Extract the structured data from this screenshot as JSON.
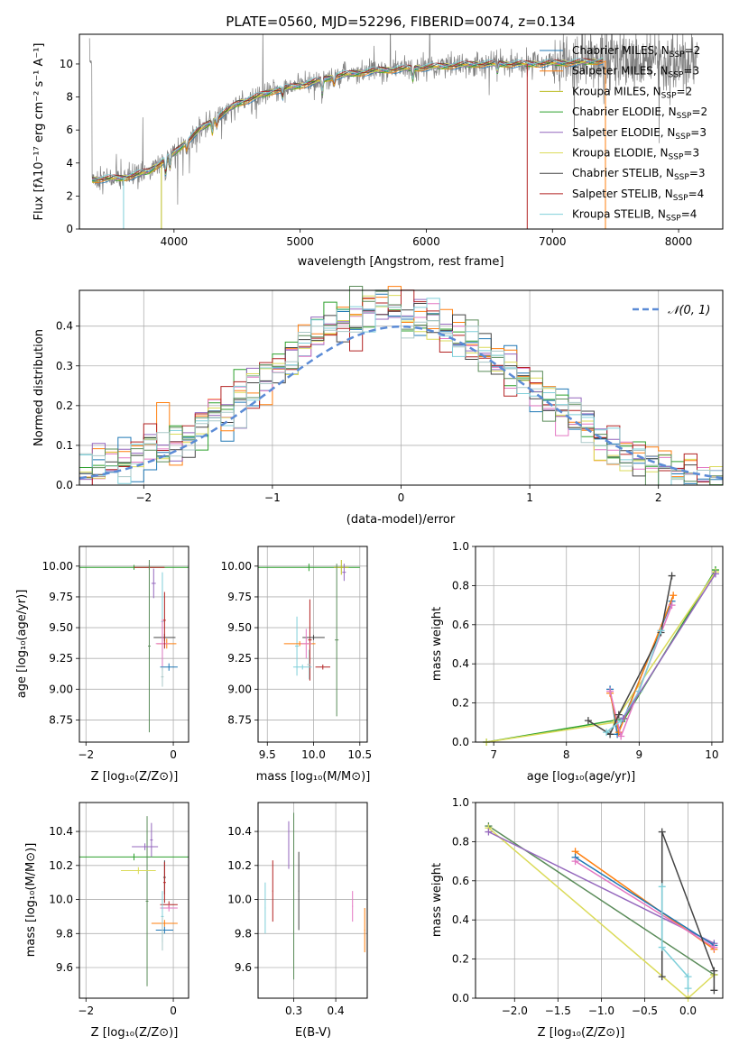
{
  "chart_data": [
    {
      "id": "spectrum",
      "type": "line",
      "title": "PLATE=0560, MJD=52296, FIBERID=0074, z=0.134",
      "xlabel": "wavelength [Angstrom, rest frame]",
      "ylabel": "Flux [fλ10⁻¹⁷ erg cm⁻² s⁻¹ A⁻¹]",
      "xlim": [
        3250,
        8350
      ],
      "ylim": [
        0,
        11.8
      ],
      "xticks": [
        "4000",
        "5000",
        "6000",
        "7000",
        "8000"
      ],
      "yticks": [
        "0",
        "2",
        "4",
        "6",
        "8",
        "10"
      ],
      "grid": false,
      "legend_position": "right",
      "legend": [
        {
          "label": "Chabrier MILES, N",
          "sub": "SSP",
          "eq": "=2",
          "color": "#1f77b4"
        },
        {
          "label": "Salpeter MILES, N",
          "sub": "SSP",
          "eq": "=3",
          "color": "#ff7f0e"
        },
        {
          "label": "Kroupa MILES, N",
          "sub": "SSP",
          "eq": "=2",
          "color": "#bcbd22"
        },
        {
          "label": "Chabrier ELODIE, N",
          "sub": "SSP",
          "eq": "=2",
          "color": "#2ca02c"
        },
        {
          "label": "Salpeter ELODIE, N",
          "sub": "SSP",
          "eq": "=3",
          "color": "#9467bd"
        },
        {
          "label": "Kroupa ELODIE, N",
          "sub": "SSP",
          "eq": "=3",
          "color": "#dbdb5a"
        },
        {
          "label": "Chabrier STELIB, N",
          "sub": "SSP",
          "eq": "=3",
          "color": "#444444"
        },
        {
          "label": "Salpeter STELIB, N",
          "sub": "SSP",
          "eq": "=4",
          "color": "#b22222"
        },
        {
          "label": "Kroupa STELIB, N",
          "sub": "SSP",
          "eq": "=4",
          "color": "#7fcfd9"
        }
      ],
      "model_continuum": {
        "x": [
          3350,
          3600,
          3800,
          4000,
          4200,
          4500,
          4800,
          5000,
          5300,
          5600,
          6000,
          6400,
          6800,
          7200,
          7400
        ],
        "y": [
          3.0,
          3.1,
          3.5,
          4.6,
          6.0,
          7.6,
          8.4,
          8.7,
          9.3,
          9.6,
          9.8,
          10.0,
          10.0,
          10.1,
          10.2
        ]
      }
    },
    {
      "id": "residuals",
      "type": "histogram",
      "xlabel": "(data-model)/error",
      "ylabel": "Normed distribution",
      "xlim": [
        -2.5,
        2.5
      ],
      "ylim": [
        0,
        0.49
      ],
      "xticks": [
        "−2",
        "−1",
        "0",
        "1",
        "2"
      ],
      "yticks": [
        "0.0",
        "0.1",
        "0.2",
        "0.3",
        "0.4"
      ],
      "grid": true,
      "legend_position": "top-right",
      "legend_label": "𝒩(0, 1)",
      "bin_width": 0.1,
      "bin_start": -2.5,
      "series_colors": [
        "#1f77b4",
        "#ff7f0e",
        "#2ca02c",
        "#9467bd",
        "#e377c2",
        "#dbdb5a",
        "#444444",
        "#b22222",
        "#7fcfd9",
        "#5b8c5a",
        "#aac8c8"
      ]
    },
    {
      "id": "age-vs-Z",
      "type": "errorbar",
      "xlabel": "Z [log₁₀(Z/Z⊙)]",
      "ylabel": "age  [log₁₀(age/yr)]",
      "xlim": [
        -2.15,
        0.35
      ],
      "ylim": [
        8.57,
        10.16
      ],
      "xticks": [
        "−2",
        "0"
      ],
      "yticks": [
        "8.75",
        "9.00",
        "9.25",
        "9.50",
        "9.75",
        "10.00"
      ],
      "points": [
        {
          "x": -0.9,
          "y": 9.99,
          "xerr": 1.25,
          "yerr": 0.02,
          "color": "#2ca02c"
        },
        {
          "x": -0.55,
          "y": 9.99,
          "xerr": 0.35,
          "yerr": 0.02,
          "color": "#b22222"
        },
        {
          "x": -0.45,
          "y": 9.86,
          "xerr": 0.05,
          "yerr": 0.12,
          "color": "#9467bd"
        },
        {
          "x": -0.55,
          "y": 9.35,
          "xerr": 0.03,
          "yerr": 0.7,
          "color": "#5b8c5a"
        },
        {
          "x": -0.25,
          "y": 9.55,
          "xerr": 0.03,
          "yerr": 0.4,
          "color": "#7fcfd9"
        },
        {
          "x": -0.2,
          "y": 9.42,
          "xerr": 0.25,
          "yerr": 0.03,
          "color": "#444444"
        },
        {
          "x": -0.15,
          "y": 9.37,
          "xerr": 0.22,
          "yerr": 0.04,
          "color": "#ff7f0e"
        },
        {
          "x": -0.25,
          "y": 9.37,
          "xerr": 0.15,
          "yerr": 0.2,
          "color": "#e377c2"
        },
        {
          "x": -0.2,
          "y": 9.56,
          "xerr": 0.03,
          "yerr": 0.23,
          "color": "#b22222"
        },
        {
          "x": -0.1,
          "y": 9.18,
          "xerr": 0.2,
          "yerr": 0.03,
          "color": "#1f77b4"
        },
        {
          "x": -0.25,
          "y": 9.1,
          "xerr": 0.03,
          "yerr": 0.08,
          "color": "#aac8c8"
        }
      ]
    },
    {
      "id": "age-vs-mass",
      "type": "errorbar",
      "xlabel": "mass [log₁₀(M/M⊙)]",
      "ylabel": "",
      "xlim": [
        9.4,
        10.58
      ],
      "ylim": [
        8.57,
        10.16
      ],
      "xticks": [
        "9.5",
        "10.0",
        "10.5"
      ],
      "yticks": [
        "8.75",
        "9.00",
        "9.25",
        "9.50",
        "9.75",
        "10.00"
      ],
      "points": [
        {
          "x": 9.95,
          "y": 9.99,
          "xerr": 0.55,
          "yerr": 0.03,
          "color": "#2ca02c"
        },
        {
          "x": 10.3,
          "y": 9.99,
          "xerr": 0.08,
          "yerr": 0.06,
          "color": "#bcbd22"
        },
        {
          "x": 10.33,
          "y": 9.95,
          "xerr": 0.02,
          "yerr": 0.07,
          "color": "#9467bd"
        },
        {
          "x": 10.25,
          "y": 9.4,
          "xerr": 0.02,
          "yerr": 0.62,
          "color": "#5b8c5a"
        },
        {
          "x": 9.82,
          "y": 9.35,
          "xerr": 0.02,
          "yerr": 0.24,
          "color": "#7fcfd9"
        },
        {
          "x": 9.96,
          "y": 9.4,
          "xerr": 0.02,
          "yerr": 0.33,
          "color": "#b22222"
        },
        {
          "x": 10.0,
          "y": 9.42,
          "xerr": 0.12,
          "yerr": 0.02,
          "color": "#444444"
        },
        {
          "x": 9.85,
          "y": 9.37,
          "xerr": 0.17,
          "yerr": 0.02,
          "color": "#ff7f0e"
        },
        {
          "x": 9.92,
          "y": 9.37,
          "xerr": 0.06,
          "yerr": 0.12,
          "color": "#e377c2"
        },
        {
          "x": 10.1,
          "y": 9.18,
          "xerr": 0.08,
          "yerr": 0.02,
          "color": "#b22222"
        },
        {
          "x": 9.88,
          "y": 9.18,
          "xerr": 0.1,
          "yerr": 0.02,
          "color": "#7fcfd9"
        },
        {
          "x": 9.95,
          "y": 9.2,
          "xerr": 0.02,
          "yerr": 0.12,
          "color": "#aac8c8"
        }
      ]
    },
    {
      "id": "weight-vs-age",
      "type": "line",
      "xlabel": "age  [log₁₀(age/yr)]",
      "ylabel": "mass weight",
      "xlim": [
        6.75,
        10.15
      ],
      "ylim": [
        0,
        1
      ],
      "xticks": [
        "7",
        "8",
        "9",
        "10"
      ],
      "yticks": [
        "0.0",
        "0.2",
        "0.4",
        "0.6",
        "0.8",
        "1.0"
      ],
      "grid": true,
      "series": [
        {
          "color": "#2ca02c",
          "x": [
            6.9,
            8.8,
            10.05
          ],
          "y": [
            0.0,
            0.12,
            0.88
          ]
        },
        {
          "color": "#dbdb5a",
          "x": [
            6.9,
            8.65,
            10.05
          ],
          "y": [
            0.0,
            0.1,
            0.87
          ]
        },
        {
          "color": "#1f77b4",
          "x": [
            8.6,
            8.7,
            9.45
          ],
          "y": [
            0.27,
            0.04,
            0.72
          ]
        },
        {
          "color": "#ff7f0e",
          "x": [
            8.6,
            8.72,
            9.47
          ],
          "y": [
            0.25,
            0.05,
            0.75
          ]
        },
        {
          "color": "#e377c2",
          "x": [
            8.6,
            8.75,
            9.45
          ],
          "y": [
            0.26,
            0.03,
            0.7
          ]
        },
        {
          "color": "#444444",
          "x": [
            8.3,
            8.6,
            8.72,
            9.3,
            9.45
          ],
          "y": [
            0.11,
            0.04,
            0.14,
            0.56,
            0.85
          ]
        },
        {
          "color": "#7fcfd9",
          "x": [
            8.55,
            8.75,
            9.0,
            9.3
          ],
          "y": [
            0.05,
            0.11,
            0.26,
            0.57
          ]
        },
        {
          "color": "#9467bd",
          "x": [
            8.78,
            10.05
          ],
          "y": [
            0.12,
            0.86
          ]
        }
      ]
    },
    {
      "id": "mass-vs-Z",
      "type": "errorbar",
      "xlabel": "Z [log₁₀(Z/Z⊙)]",
      "ylabel": "mass [log₁₀(M/M⊙)]",
      "xlim": [
        -2.15,
        0.35
      ],
      "ylim": [
        9.42,
        10.57
      ],
      "xticks": [
        "−2",
        "0"
      ],
      "yticks": [
        "9.6",
        "9.8",
        "10.0",
        "10.2",
        "10.4"
      ],
      "points": [
        {
          "x": -0.9,
          "y": 10.25,
          "xerr": 1.25,
          "yerr": 0.02,
          "color": "#2ca02c"
        },
        {
          "x": -0.6,
          "y": 9.99,
          "xerr": 0.03,
          "yerr": 0.5,
          "color": "#5b8c5a"
        },
        {
          "x": -0.65,
          "y": 10.31,
          "xerr": 0.3,
          "yerr": 0.02,
          "color": "#9467bd"
        },
        {
          "x": -0.5,
          "y": 10.35,
          "xerr": 0.03,
          "yerr": 0.1,
          "color": "#9467bd"
        },
        {
          "x": -0.8,
          "y": 10.17,
          "xerr": 0.4,
          "yerr": 0.02,
          "color": "#dbdb5a"
        },
        {
          "x": -0.2,
          "y": 10.13,
          "xerr": 0.03,
          "yerr": 0.1,
          "color": "#444444"
        },
        {
          "x": -0.2,
          "y": 10.1,
          "xerr": 0.03,
          "yerr": 0.12,
          "color": "#b22222"
        },
        {
          "x": -0.1,
          "y": 9.97,
          "xerr": 0.2,
          "yerr": 0.02,
          "color": "#b22222"
        },
        {
          "x": -0.1,
          "y": 9.95,
          "xerr": 0.2,
          "yerr": 0.02,
          "color": "#e377c2"
        },
        {
          "x": -0.2,
          "y": 9.86,
          "xerr": 0.3,
          "yerr": 0.02,
          "color": "#ff7f0e"
        },
        {
          "x": -0.2,
          "y": 9.82,
          "xerr": 0.2,
          "yerr": 0.02,
          "color": "#1f77b4"
        },
        {
          "x": -0.25,
          "y": 9.9,
          "xerr": 0.03,
          "yerr": 0.15,
          "color": "#7fcfd9"
        },
        {
          "x": -0.25,
          "y": 9.8,
          "xerr": 0.03,
          "yerr": 0.1,
          "color": "#aac8c8"
        }
      ]
    },
    {
      "id": "mass-vs-EBV",
      "type": "errorbar",
      "xlabel": "E(B-V)",
      "ylabel": "",
      "xlim": [
        0.215,
        0.475
      ],
      "ylim": [
        9.42,
        10.57
      ],
      "xticks": [
        "0.3",
        "0.4"
      ],
      "yticks": [
        "9.6",
        "9.8",
        "10.0",
        "10.2",
        "10.4"
      ],
      "points": [
        {
          "x": 0.232,
          "y": 9.95,
          "xerr": 0.001,
          "yerr": 0.15,
          "color": "#7fcfd9"
        },
        {
          "x": 0.25,
          "y": 10.05,
          "xerr": 0.001,
          "yerr": 0.18,
          "color": "#b22222"
        },
        {
          "x": 0.3,
          "y": 10.02,
          "xerr": 0.001,
          "yerr": 0.49,
          "color": "#5b8c5a"
        },
        {
          "x": 0.288,
          "y": 10.32,
          "xerr": 0.001,
          "yerr": 0.14,
          "color": "#9467bd"
        },
        {
          "x": 0.312,
          "y": 10.05,
          "xerr": 0.001,
          "yerr": 0.23,
          "color": "#444444"
        },
        {
          "x": 0.44,
          "y": 9.96,
          "xerr": 0.001,
          "yerr": 0.09,
          "color": "#e377c2"
        },
        {
          "x": 0.469,
          "y": 9.82,
          "xerr": 0.001,
          "yerr": 0.13,
          "color": "#ff7f0e"
        }
      ]
    },
    {
      "id": "weight-vs-Z",
      "type": "line",
      "xlabel": "Z [log₁₀(Z/Z⊙)]",
      "ylabel": "mass weight",
      "xlim": [
        -2.45,
        0.4
      ],
      "ylim": [
        0,
        1
      ],
      "xticks": [
        "−2.0",
        "−1.5",
        "−1.0",
        "−0.5",
        "0.0"
      ],
      "yticks": [
        "0.0",
        "0.2",
        "0.4",
        "0.6",
        "0.8",
        "1.0"
      ],
      "grid": true,
      "series": [
        {
          "color": "#5b8c5a",
          "x": [
            -2.3,
            0.3,
            0.3
          ],
          "y": [
            0.88,
            0.12,
            0.12
          ]
        },
        {
          "color": "#dbdb5a",
          "x": [
            -2.3,
            0.0,
            0.3
          ],
          "y": [
            0.87,
            0.0,
            0.12
          ]
        },
        {
          "color": "#9467bd",
          "x": [
            -2.3,
            0.3
          ],
          "y": [
            0.85,
            0.28
          ]
        },
        {
          "color": "#ff7f0e",
          "x": [
            -1.3,
            0.3
          ],
          "y": [
            0.75,
            0.25
          ]
        },
        {
          "color": "#1f77b4",
          "x": [
            -1.3,
            0.3
          ],
          "y": [
            0.72,
            0.27
          ]
        },
        {
          "color": "#e377c2",
          "x": [
            -1.3,
            0.3
          ],
          "y": [
            0.7,
            0.26
          ]
        },
        {
          "color": "#444444",
          "x": [
            -0.3,
            -0.3,
            0.3,
            0.3
          ],
          "y": [
            0.11,
            0.85,
            0.14,
            0.04
          ]
        },
        {
          "color": "#7fcfd9",
          "x": [
            -0.3,
            -0.3,
            0.0,
            0.0
          ],
          "y": [
            0.57,
            0.26,
            0.11,
            0.05
          ]
        }
      ]
    }
  ]
}
